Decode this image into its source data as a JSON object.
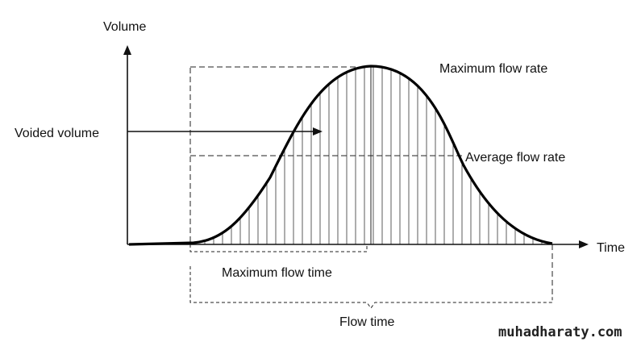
{
  "diagram": {
    "axis_labels": {
      "y": "Volume",
      "x": "Time"
    },
    "annotations": {
      "max_rate": "Maximum flow rate",
      "voided_volume": "Voided volume",
      "avg_rate": "Average flow rate",
      "max_flow_time": "Maximum flow time",
      "flow_time": "Flow time"
    }
  },
  "watermark": "muhadharaty.com"
}
